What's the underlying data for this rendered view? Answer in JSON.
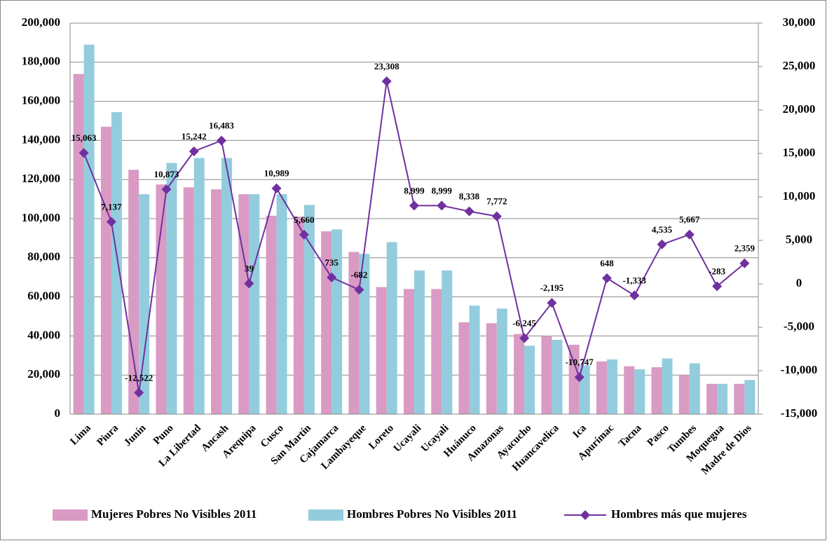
{
  "chart_data": {
    "type": "bar",
    "categories": [
      "Lima",
      "Piura",
      "Junín",
      "Puno",
      "La Libertad",
      "Ancash",
      "Arequipa",
      "Cusco",
      "San Martín",
      "Cajamarca",
      "Lambayeque",
      "Loreto",
      "Ucayali",
      "Ucayali",
      "Huánuco",
      "Amazonas",
      "Ayacucho",
      "Huancavelica",
      "Ica",
      "Apurímac",
      "Tacna",
      "Pasco",
      "Tumbes",
      "Moquegua",
      "Madre de Dios"
    ],
    "series": [
      {
        "name": "Mujeres Pobres No Visibles 2011",
        "color": "#d99ac4",
        "values": [
          174000,
          147000,
          125000,
          117500,
          116000,
          115000,
          112500,
          101500,
          101000,
          93500,
          83000,
          65000,
          64000,
          64000,
          47000,
          46500,
          41000,
          40000,
          35500,
          27000,
          24500,
          24000,
          20000,
          15500,
          15500
        ]
      },
      {
        "name": "Hombres Pobres No Visibles 2011",
        "color": "#93cddd",
        "values": [
          189000,
          154500,
          112500,
          128500,
          131000,
          131000,
          112500,
          112500,
          107000,
          94500,
          82000,
          88000,
          73500,
          73500,
          55500,
          54000,
          35000,
          38000,
          25000,
          28000,
          23000,
          28500,
          26000,
          15500,
          17500
        ]
      },
      {
        "name": "Hombres más que mujeres",
        "color": "#7030a0",
        "type": "line",
        "axis": "y2",
        "values": [
          15063,
          7137,
          -12522,
          10873,
          15242,
          16483,
          39,
          10989,
          5660,
          735,
          -682,
          23308,
          8999,
          8999,
          8338,
          7772,
          -6245,
          -2195,
          -10747,
          648,
          -1333,
          4535,
          5667,
          -283,
          2359
        ],
        "value_labels": [
          "15,063",
          "7,137",
          "-12,522",
          "10,873",
          "15,242",
          "16,483",
          "39",
          "10,989",
          "5,660",
          "735",
          "-682",
          "23,308",
          "8,999",
          "8,999",
          "8,338",
          "7,772",
          "-6,245",
          "-2,195",
          "-10,747",
          "648",
          "-1,333",
          "4,535",
          "5,667",
          "-283",
          "2,359"
        ]
      }
    ],
    "ylim": [
      0,
      200000
    ],
    "yticks": [
      0,
      {
        "value": 20000,
        "label": "20,000"
      },
      {
        "value": 40000,
        "label": "40,000"
      },
      {
        "value": 60000,
        "label": "60,000"
      },
      {
        "value": 80000,
        "label": "80,000"
      },
      {
        "value": 100000,
        "label": "100,000"
      },
      {
        "value": 120000,
        "label": "120,000"
      },
      {
        "value": 140000,
        "label": "140,000"
      },
      {
        "value": 160000,
        "label": "160,000"
      },
      {
        "value": 180000,
        "label": "180,000"
      },
      {
        "value": 200000,
        "label": "200,000"
      }
    ],
    "y2lim": [
      -15000,
      30000
    ],
    "y2ticks": [
      {
        "value": -15000,
        "label": "-15,000"
      },
      {
        "value": -10000,
        "label": "-10,000"
      },
      {
        "value": -5000,
        "label": "-5,000"
      },
      0,
      {
        "value": 5000,
        "label": "5,000"
      },
      {
        "value": 10000,
        "label": "10,000"
      },
      {
        "value": 15000,
        "label": "15,000"
      },
      {
        "value": 20000,
        "label": "20,000"
      },
      {
        "value": 25000,
        "label": "25,000"
      },
      {
        "value": 30000,
        "label": "30,000"
      }
    ],
    "grid": true,
    "legend": "bottom"
  }
}
